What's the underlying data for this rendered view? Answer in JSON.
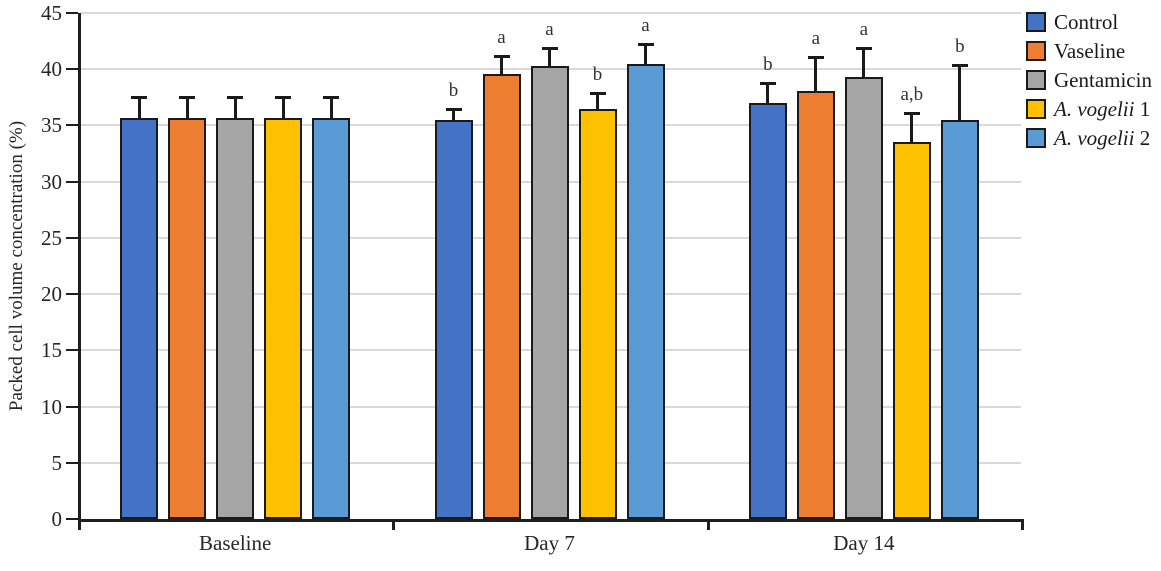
{
  "chart_data": {
    "type": "bar",
    "title": "",
    "ylabel": "Packed cell volume concentration (%)",
    "xlabel": "",
    "ylim": [
      0,
      45
    ],
    "ytick_step": 5,
    "grid": true,
    "legend_position": "top-right",
    "error_bars": "plus-only",
    "categories": [
      "Baseline",
      "Day 7",
      "Day 14"
    ],
    "series": [
      {
        "name": "Control",
        "color": "#4472C4",
        "values": [
          35.7,
          35.5,
          37.0
        ],
        "errors_plus": [
          1.8,
          1.0,
          1.8
        ],
        "sig_labels": [
          "",
          "b",
          "b"
        ]
      },
      {
        "name": "Vaseline",
        "color": "#ED7D31",
        "values": [
          35.7,
          39.6,
          38.1
        ],
        "errors_plus": [
          1.8,
          1.6,
          3.0
        ],
        "sig_labels": [
          "",
          "a",
          "a"
        ]
      },
      {
        "name": "Gentamicin",
        "color": "#A5A5A5",
        "values": [
          35.7,
          40.3,
          39.3
        ],
        "errors_plus": [
          1.8,
          1.6,
          2.6
        ],
        "sig_labels": [
          "",
          "a",
          "a"
        ]
      },
      {
        "name": "A. vogelii 1",
        "name_italic": "A. vogelii",
        "name_rest": " 1",
        "color": "#FFC000",
        "values": [
          35.7,
          36.5,
          33.5
        ],
        "errors_plus": [
          1.8,
          1.4,
          2.6
        ],
        "sig_labels": [
          "",
          "b",
          "a,b"
        ]
      },
      {
        "name": "A. vogelii 2",
        "name_italic": "A. vogelii",
        "name_rest": " 2",
        "color": "#5B9BD5",
        "values": [
          35.7,
          40.5,
          35.5
        ],
        "errors_plus": [
          1.8,
          1.7,
          4.9
        ],
        "sig_labels": [
          "",
          "a",
          "b"
        ]
      }
    ],
    "colors": {
      "grid": "#d9d9d9",
      "axis": "#1f1f1f",
      "bar_border": "#1a1a1a",
      "text": "#262626"
    }
  }
}
